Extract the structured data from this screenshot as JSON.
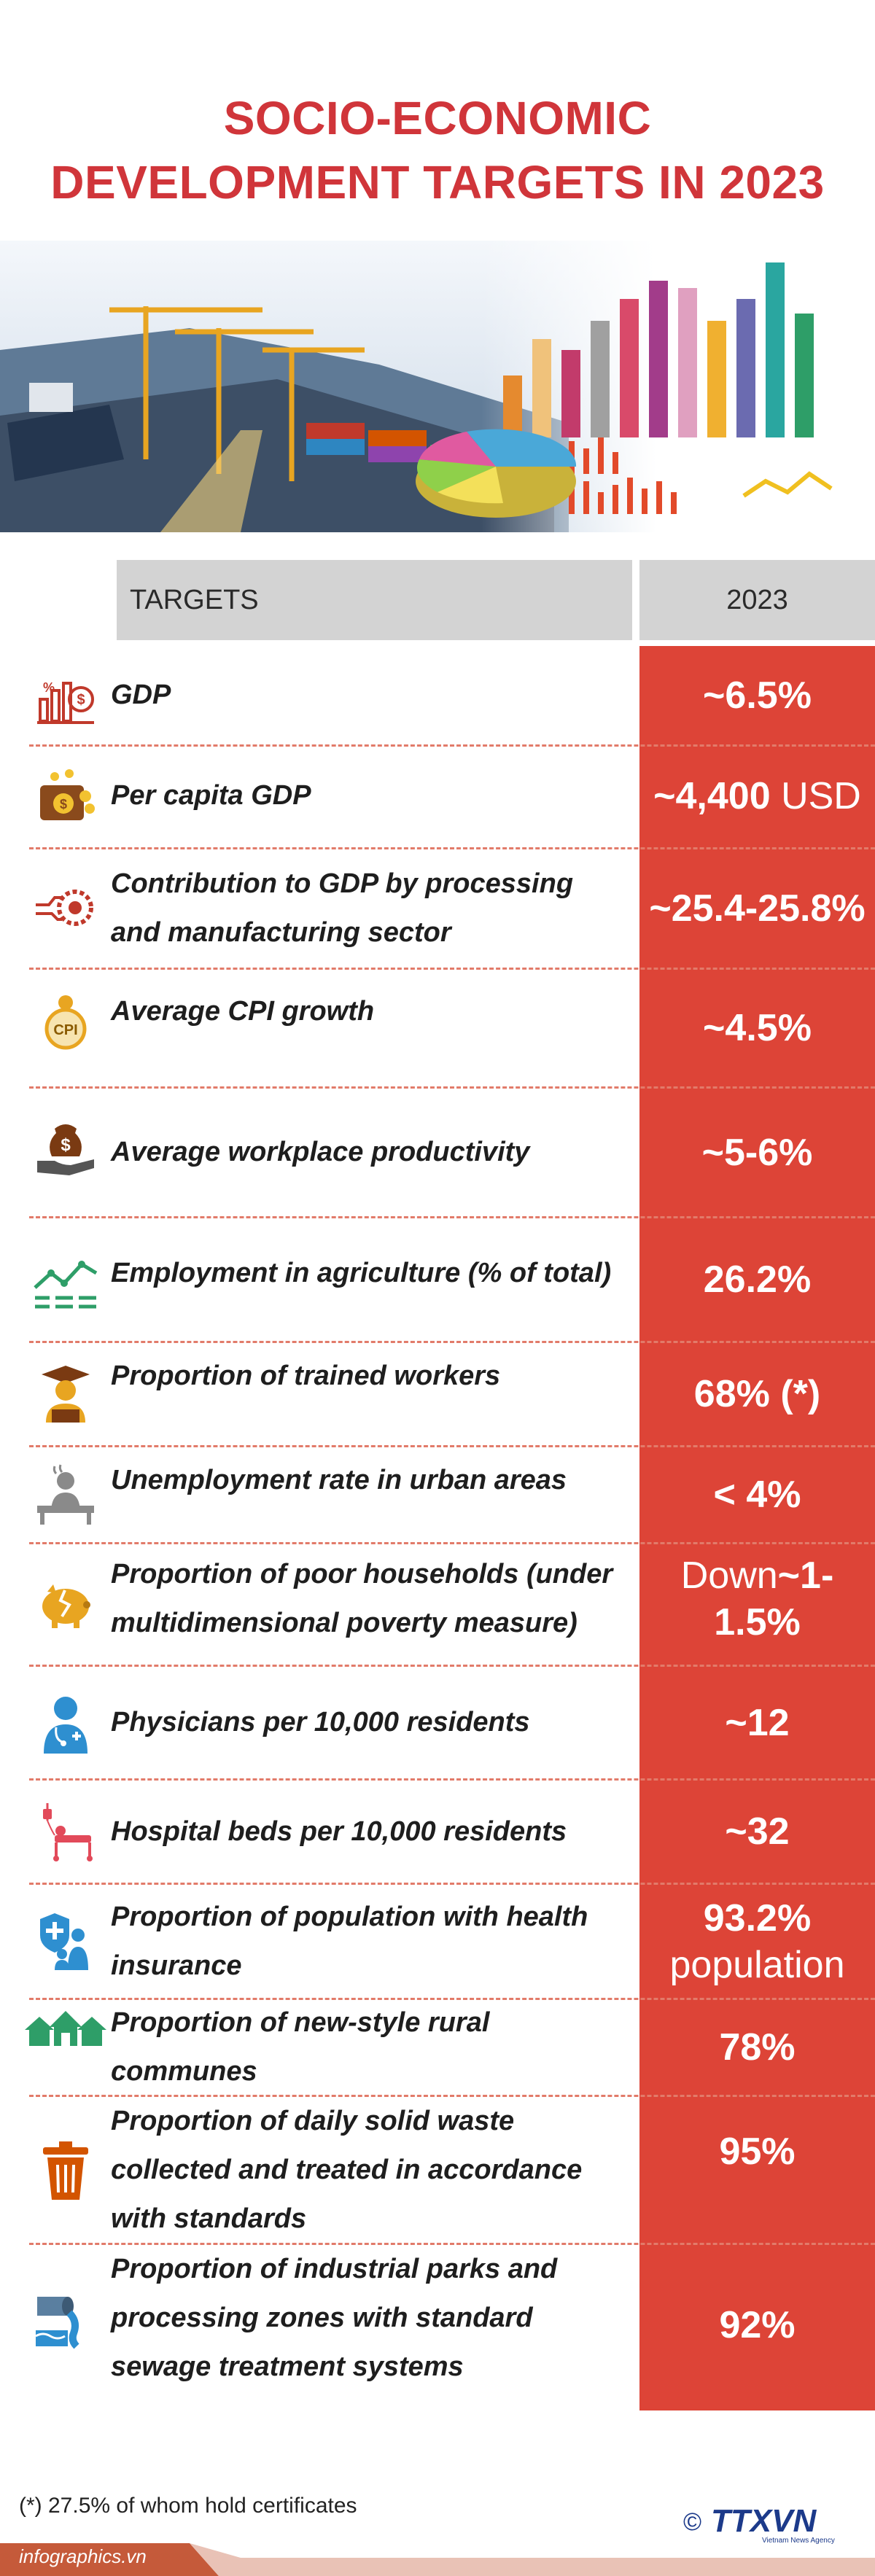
{
  "title": {
    "line1": "SOCIO-ECONOMIC",
    "line2": "DEVELOPMENT TARGETS IN 2023"
  },
  "header": {
    "targets_label": "TARGETS",
    "year_label": "2023"
  },
  "colors": {
    "accent_red": "#d0353a",
    "value_column": "#dd4437",
    "header_gray": "#d3d3d3",
    "divider": "#e27b6a"
  },
  "rows": [
    {
      "icon": "gdp-chart-icon",
      "label": "GDP",
      "value": "~6.5%",
      "value_suffix": ""
    },
    {
      "icon": "wallet-coin-icon",
      "label": "Per capita GDP",
      "value": "~4,400",
      "value_suffix": " USD"
    },
    {
      "icon": "gears-icon",
      "label": "Contribution to GDP by processing and manufacturing sector",
      "value": "~25.4-25.8%",
      "value_suffix": ""
    },
    {
      "icon": "cpi-medal-icon",
      "label": "Average CPI growth",
      "value": "~4.5%",
      "value_suffix": ""
    },
    {
      "icon": "hand-money-bag-icon",
      "label": "Average workplace productivity",
      "value": "~5-6%",
      "value_suffix": ""
    },
    {
      "icon": "trend-line-icon",
      "label": "Employment in agriculture (% of total)",
      "value": "26.2%",
      "value_suffix": ""
    },
    {
      "icon": "graduate-icon",
      "label": "Proportion of trained workers",
      "value": "68% (*)",
      "value_suffix": ""
    },
    {
      "icon": "unemployed-person-icon",
      "label": "Unemployment rate in urban areas",
      "value": "< 4%",
      "value_suffix": ""
    },
    {
      "icon": "broken-piggy-bank-icon",
      "label": "Proportion of poor households (under multidimensional poverty measure)",
      "value_prefix": "Down",
      "value": "~1-1.5%",
      "value_suffix": ""
    },
    {
      "icon": "physician-icon",
      "label": "Physicians per 10,000 residents",
      "value": "~12",
      "value_suffix": ""
    },
    {
      "icon": "hospital-bed-icon",
      "label": "Hospital beds per 10,000 residents",
      "value": "~32",
      "value_suffix": ""
    },
    {
      "icon": "health-shield-family-icon",
      "label": "Proportion of population with health insurance",
      "value": "93.2%",
      "value_line2": "population"
    },
    {
      "icon": "rural-houses-icon",
      "label": "Proportion of new-style rural communes",
      "value": "78%",
      "value_suffix": ""
    },
    {
      "icon": "trash-bin-icon",
      "label": "Proportion of daily solid waste collected and treated in accordance with standards",
      "value": "95%",
      "value_suffix": ""
    },
    {
      "icon": "sewage-pipe-icon",
      "label": "Proportion of industrial parks and processing zones with standard sewage treatment systems",
      "value": "92%",
      "value_suffix": ""
    }
  ],
  "footnote": "(*) 27.5% of whom hold certificates",
  "site": "infographics.vn",
  "logo": {
    "copyright": "©",
    "name": "TTXVN",
    "tagline": "Vietnam News Agency"
  }
}
